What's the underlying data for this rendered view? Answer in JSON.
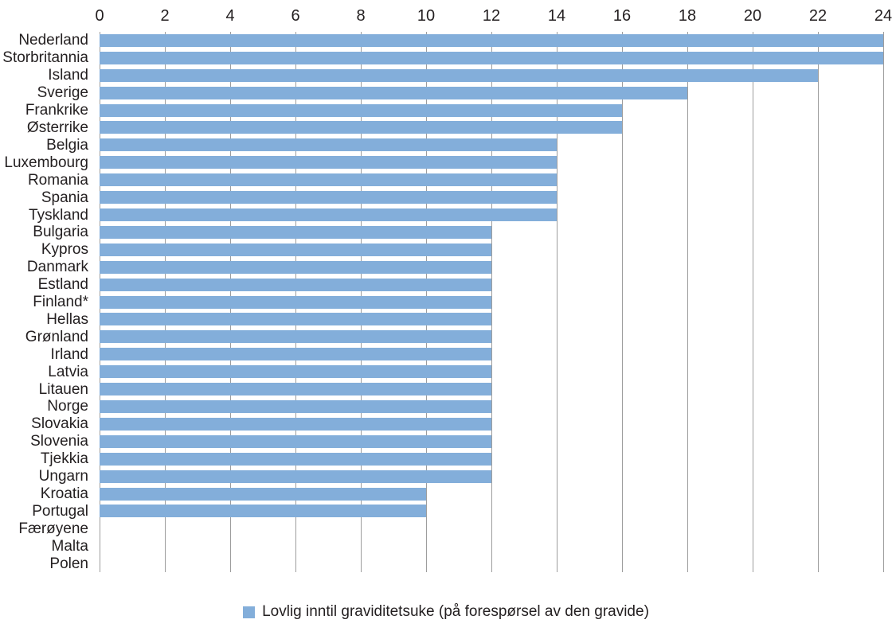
{
  "chart_data": {
    "type": "bar",
    "orientation": "horizontal",
    "title": "",
    "xlabel": "",
    "ylabel": "",
    "categories": [
      "Nederland",
      "Storbritannia",
      "Island",
      "Sverige",
      "Frankrike",
      "Østerrike",
      "Belgia",
      "Luxembourg",
      "Romania",
      "Spania",
      "Tyskland",
      "Bulgaria",
      "Kypros",
      "Danmark",
      "Estland",
      "Finland*",
      "Hellas",
      "Grønland",
      "Irland",
      "Latvia",
      "Litauen",
      "Norge",
      "Slovakia",
      "Slovenia",
      "Tjekkia",
      "Ungarn",
      "Kroatia",
      "Portugal",
      "Færøyene",
      "Malta",
      "Polen"
    ],
    "values": [
      24,
      24,
      22,
      18,
      16,
      16,
      14,
      14,
      14,
      14,
      14,
      12,
      12,
      12,
      12,
      12,
      12,
      12,
      12,
      12,
      12,
      12,
      12,
      12,
      12,
      12,
      10,
      10,
      0,
      0,
      0
    ],
    "xlim": [
      0,
      24
    ],
    "xticks": [
      0,
      2,
      4,
      6,
      8,
      10,
      12,
      14,
      16,
      18,
      20,
      22,
      24
    ],
    "grid": "vertical",
    "legend_position": "bottom",
    "legend": [
      "Lovlig inntil graviditetsuke (på forespørsel av den gravide)"
    ],
    "colors": {
      "bar": "#83aeda",
      "gridline": "#9d9d9d",
      "text": "#231f20"
    }
  }
}
